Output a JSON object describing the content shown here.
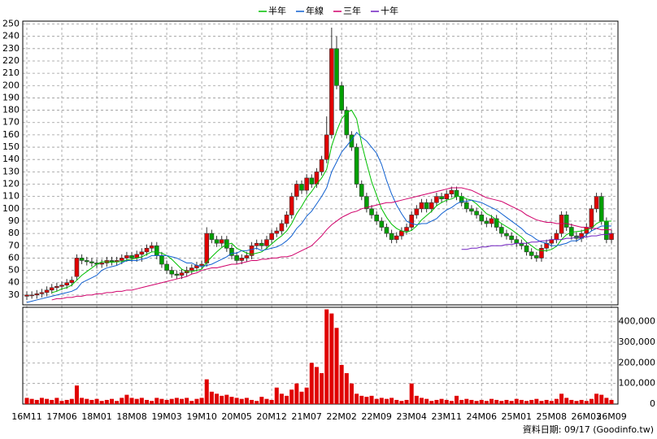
{
  "chart_data": [
    {
      "type": "candlestick",
      "legend": "top",
      "grid": true,
      "up_color": "#e00000",
      "down_color": "#00a000",
      "x": [
        "16M11",
        null,
        null,
        null,
        null,
        null,
        null,
        "17M06",
        null,
        null,
        null,
        null,
        null,
        null,
        "18M01",
        null,
        null,
        null,
        null,
        null,
        null,
        "18M08",
        null,
        null,
        null,
        null,
        null,
        null,
        "19M03",
        null,
        null,
        null,
        null,
        null,
        null,
        "19M10",
        null,
        null,
        null,
        null,
        null,
        null,
        "20M05",
        null,
        null,
        null,
        null,
        null,
        null,
        "20M12",
        null,
        null,
        null,
        null,
        null,
        null,
        "21M07",
        null,
        null,
        null,
        null,
        null,
        null,
        "22M02",
        null,
        null,
        null,
        null,
        null,
        null,
        "22M09",
        null,
        null,
        null,
        null,
        null,
        null,
        "23M04",
        null,
        null,
        null,
        null,
        null,
        null,
        "23M11",
        null,
        null,
        null,
        null,
        null,
        null,
        "24M06",
        null,
        null,
        null,
        null,
        null,
        null,
        "25M01",
        null,
        null,
        null,
        null,
        null,
        null,
        "25M08",
        null,
        null,
        null,
        null,
        null,
        null,
        "26M03",
        null,
        null,
        null,
        null,
        "26M09"
      ],
      "open": [
        29,
        30,
        30,
        31,
        32,
        34,
        36,
        37,
        38,
        40,
        45,
        60,
        58,
        57,
        56,
        55,
        56,
        58,
        57,
        58,
        60,
        62,
        60,
        63,
        65,
        68,
        70,
        62,
        55,
        50,
        47,
        46,
        48,
        50,
        52,
        54,
        56,
        80,
        75,
        72,
        75,
        68,
        62,
        58,
        60,
        62,
        70,
        72,
        70,
        75,
        80,
        82,
        88,
        95,
        110,
        120,
        115,
        125,
        120,
        130,
        140,
        160,
        230,
        200,
        180,
        160,
        150,
        120,
        110,
        100,
        95,
        90,
        85,
        80,
        75,
        78,
        82,
        85,
        95,
        100,
        105,
        100,
        105,
        110,
        108,
        112,
        115,
        110,
        105,
        100,
        98,
        95,
        90,
        88,
        92,
        85,
        80,
        78,
        75,
        72,
        70,
        65,
        62,
        60,
        68,
        72,
        75,
        80,
        95,
        85,
        78,
        76,
        80,
        85,
        100,
        110,
        90,
        75
      ],
      "high": [
        33,
        33,
        34,
        35,
        37,
        39,
        40,
        41,
        43,
        45,
        63,
        63,
        61,
        60,
        59,
        59,
        61,
        61,
        61,
        63,
        65,
        65,
        66,
        68,
        71,
        73,
        73,
        65,
        58,
        53,
        50,
        51,
        53,
        55,
        57,
        58,
        85,
        83,
        78,
        78,
        78,
        71,
        65,
        63,
        65,
        73,
        75,
        75,
        78,
        83,
        85,
        91,
        98,
        113,
        123,
        123,
        128,
        128,
        133,
        143,
        175,
        247,
        240,
        203,
        183,
        163,
        153,
        123,
        113,
        103,
        98,
        93,
        88,
        83,
        81,
        85,
        88,
        98,
        103,
        108,
        108,
        108,
        113,
        113,
        115,
        118,
        118,
        113,
        108,
        103,
        101,
        98,
        93,
        95,
        95,
        88,
        83,
        81,
        78,
        75,
        73,
        68,
        65,
        71,
        75,
        78,
        83,
        98,
        98,
        88,
        81,
        83,
        88,
        103,
        113,
        113,
        93,
        83
      ],
      "low": [
        26,
        27,
        27,
        28,
        29,
        31,
        33,
        34,
        35,
        37,
        42,
        55,
        54,
        53,
        52,
        52,
        53,
        54,
        54,
        55,
        57,
        57,
        57,
        57,
        62,
        65,
        59,
        52,
        47,
        44,
        43,
        43,
        45,
        47,
        49,
        51,
        53,
        72,
        69,
        69,
        65,
        59,
        55,
        55,
        57,
        59,
        67,
        67,
        67,
        72,
        77,
        79,
        85,
        92,
        107,
        112,
        112,
        117,
        117,
        127,
        137,
        157,
        197,
        177,
        157,
        147,
        117,
        107,
        97,
        92,
        87,
        82,
        77,
        72,
        72,
        75,
        79,
        82,
        92,
        97,
        97,
        97,
        102,
        105,
        105,
        109,
        107,
        102,
        97,
        95,
        92,
        87,
        85,
        85,
        82,
        77,
        75,
        72,
        69,
        67,
        62,
        59,
        57,
        57,
        65,
        69,
        72,
        77,
        82,
        75,
        73,
        73,
        77,
        82,
        97,
        87,
        72,
        72
      ],
      "close": [
        30,
        30,
        31,
        32,
        34,
        36,
        37,
        38,
        40,
        42,
        60,
        58,
        57,
        56,
        55,
        56,
        58,
        57,
        58,
        60,
        62,
        60,
        63,
        65,
        68,
        70,
        62,
        55,
        50,
        47,
        46,
        48,
        50,
        52,
        54,
        55,
        80,
        75,
        72,
        75,
        68,
        62,
        58,
        60,
        62,
        70,
        72,
        70,
        75,
        80,
        82,
        88,
        95,
        110,
        120,
        115,
        125,
        120,
        130,
        140,
        160,
        230,
        200,
        180,
        160,
        150,
        120,
        110,
        100,
        95,
        90,
        85,
        80,
        75,
        78,
        82,
        85,
        95,
        100,
        105,
        100,
        105,
        110,
        108,
        112,
        115,
        110,
        105,
        100,
        98,
        95,
        90,
        88,
        92,
        85,
        80,
        78,
        75,
        72,
        70,
        65,
        62,
        60,
        68,
        72,
        75,
        80,
        95,
        85,
        78,
        76,
        80,
        85,
        100,
        110,
        90,
        75,
        80
      ],
      "series": [
        {
          "name": "半年",
          "color": "#00c000",
          "values": [
            null,
            null,
            null,
            null,
            null,
            32,
            33,
            35,
            36,
            38,
            42,
            46,
            49,
            52,
            55,
            57,
            57,
            56.5,
            57,
            57,
            58.5,
            59,
            60,
            61,
            63,
            65,
            65,
            64,
            62,
            59,
            55,
            51,
            49,
            49,
            50,
            51,
            56.5,
            61,
            65,
            68.5,
            71,
            72,
            68,
            66,
            64,
            63,
            64,
            65,
            68,
            71.5,
            75,
            78,
            82,
            88,
            96,
            102,
            109,
            114,
            120,
            125,
            132,
            151,
            163,
            173,
            178,
            180,
            173,
            153,
            137,
            122,
            111,
            100,
            93,
            87.5,
            84,
            82,
            81,
            82.5,
            86,
            91,
            94.5,
            98,
            102.5,
            105,
            107,
            108,
            110,
            110,
            108,
            107,
            104,
            100,
            96,
            94,
            91,
            88,
            85.5,
            83,
            80,
            77,
            73,
            70,
            67,
            66,
            66,
            67,
            69.5,
            75,
            79,
            81,
            81.5,
            82,
            83,
            84,
            88,
            90,
            90,
            90
          ]
        },
        {
          "name": "年線",
          "color": "#1060d0",
          "values": [
            24,
            25,
            26,
            27,
            28,
            29,
            30,
            31,
            32,
            33,
            35,
            40,
            42,
            44,
            46,
            50,
            52,
            53,
            54,
            56,
            58,
            58,
            58,
            59,
            60,
            62,
            62,
            62,
            62,
            61,
            60,
            58,
            56,
            56,
            54,
            53,
            54,
            55,
            57,
            59,
            61,
            64,
            64,
            66,
            66,
            67,
            68,
            66,
            67,
            68,
            69,
            71,
            74,
            78,
            84,
            88,
            94,
            98,
            104,
            110,
            117,
            130,
            138,
            146,
            151,
            156,
            162,
            158,
            155,
            150,
            145,
            136,
            123,
            112,
            103,
            96,
            90,
            88,
            87,
            88,
            88,
            90,
            92,
            96,
            99,
            101,
            104,
            106,
            106,
            107,
            106,
            105,
            103,
            101,
            99,
            96,
            93,
            90,
            87,
            84,
            80,
            78,
            75,
            73,
            72,
            70,
            70,
            71,
            72,
            74,
            74,
            76,
            79,
            82,
            84,
            86,
            86,
            86
          ]
        },
        {
          "name": "三年",
          "color": "#d0006a",
          "values": [
            null,
            null,
            null,
            null,
            null,
            26,
            27,
            27,
            28,
            28,
            29,
            29,
            30,
            30,
            31,
            31,
            32,
            32,
            33,
            33,
            34,
            34,
            35,
            36,
            37,
            38,
            39,
            40,
            41,
            42,
            43,
            44,
            45,
            47,
            48,
            50,
            51,
            52,
            52,
            53,
            54,
            55,
            55,
            56,
            57,
            58,
            58,
            59,
            59,
            60,
            60,
            61,
            61,
            62,
            64,
            66,
            68,
            70,
            74,
            78,
            83,
            87,
            90,
            93,
            95,
            97,
            98,
            100,
            101,
            102,
            103,
            104,
            105,
            105,
            106,
            107,
            108,
            109,
            110,
            111,
            112,
            113,
            114,
            115,
            116,
            117,
            117,
            117,
            116,
            115,
            113,
            111,
            109,
            108,
            107,
            106,
            104,
            102,
            100,
            98,
            95,
            93,
            91,
            90,
            89,
            89,
            88,
            88,
            88,
            87,
            86,
            85,
            85,
            84,
            84,
            83,
            83,
            83
          ]
        },
        {
          "name": "十年",
          "color": "#7020c0",
          "values": [
            null,
            null,
            null,
            null,
            null,
            null,
            null,
            null,
            null,
            null,
            null,
            null,
            null,
            null,
            null,
            null,
            null,
            null,
            null,
            null,
            null,
            null,
            null,
            null,
            null,
            null,
            null,
            null,
            null,
            null,
            null,
            null,
            null,
            null,
            null,
            null,
            null,
            null,
            null,
            null,
            null,
            null,
            null,
            null,
            null,
            null,
            null,
            null,
            null,
            null,
            null,
            null,
            null,
            null,
            null,
            null,
            null,
            null,
            null,
            null,
            null,
            null,
            null,
            null,
            null,
            null,
            null,
            null,
            null,
            null,
            null,
            null,
            null,
            null,
            null,
            null,
            null,
            null,
            null,
            null,
            null,
            null,
            null,
            null,
            null,
            null,
            null,
            67,
            67,
            68,
            68,
            69,
            69,
            70,
            70,
            70,
            71,
            71,
            72,
            72,
            72,
            73,
            73,
            74,
            74,
            75,
            75,
            75,
            76,
            76,
            77,
            77,
            77,
            78,
            78,
            79,
            79,
            80
          ]
        }
      ],
      "ylim": [
        22,
        251
      ],
      "yticks": [
        30,
        40,
        50,
        60,
        70,
        80,
        90,
        100,
        110,
        120,
        130,
        140,
        150,
        160,
        170,
        180,
        190,
        200,
        210,
        220,
        230,
        240,
        250
      ]
    },
    {
      "type": "bar",
      "color": "#e00000",
      "grid": true,
      "values": [
        30000,
        25000,
        20000,
        30000,
        25000,
        20000,
        30000,
        15000,
        20000,
        25000,
        90000,
        30000,
        25000,
        20000,
        25000,
        15000,
        20000,
        25000,
        15000,
        30000,
        45000,
        30000,
        25000,
        30000,
        20000,
        15000,
        30000,
        25000,
        20000,
        25000,
        30000,
        25000,
        30000,
        15000,
        25000,
        30000,
        120000,
        60000,
        50000,
        40000,
        45000,
        35000,
        30000,
        25000,
        30000,
        20000,
        15000,
        35000,
        25000,
        20000,
        80000,
        50000,
        40000,
        70000,
        100000,
        60000,
        80000,
        200000,
        180000,
        150000,
        460000,
        440000,
        370000,
        190000,
        150000,
        100000,
        50000,
        40000,
        35000,
        40000,
        25000,
        30000,
        25000,
        30000,
        20000,
        15000,
        20000,
        100000,
        40000,
        30000,
        25000,
        15000,
        20000,
        25000,
        20000,
        15000,
        40000,
        20000,
        25000,
        20000,
        15000,
        20000,
        15000,
        25000,
        20000,
        15000,
        20000,
        15000,
        25000,
        20000,
        15000,
        20000,
        25000,
        15000,
        20000,
        15000,
        25000,
        50000,
        30000,
        20000,
        15000,
        20000,
        15000,
        25000,
        50000,
        45000,
        30000,
        20000
      ],
      "ylim": [
        0,
        470000
      ],
      "yticks": [
        0,
        {
          "value": 100000,
          "label": "100,000"
        },
        {
          "value": 200000,
          "label": "200,000"
        },
        {
          "value": 300000,
          "label": "300,000"
        },
        {
          "value": 400000,
          "label": "400,000"
        }
      ],
      "footnote": "資料日期: 09/17 (Goodinfo.tw)"
    }
  ]
}
